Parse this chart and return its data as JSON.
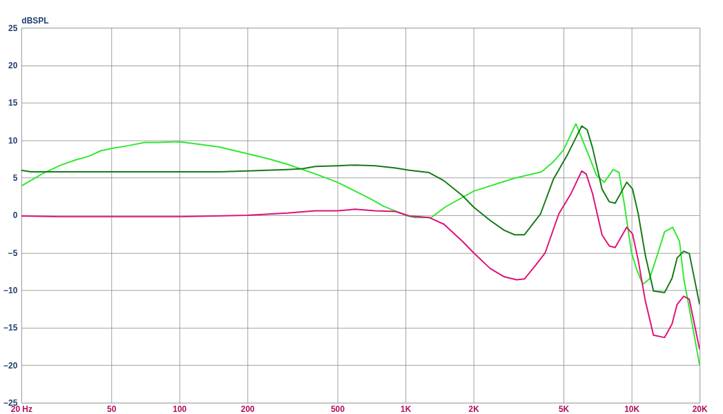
{
  "chart_data": {
    "type": "line",
    "ylabel": "dBSPL",
    "log": "x",
    "grid": true,
    "xlim": [
      20,
      20000
    ],
    "ylim": [
      -25,
      25
    ],
    "xticks": [
      {
        "value": 20,
        "label": "20  Hz"
      },
      50,
      100,
      200,
      500,
      {
        "value": 1000,
        "label": "1K"
      },
      {
        "value": 2000,
        "label": "2K"
      },
      {
        "value": 5000,
        "label": "5K"
      },
      {
        "value": 10000,
        "label": "10K"
      },
      {
        "value": 20000,
        "label": "20K"
      }
    ],
    "yticks": [
      -25,
      -20,
      -15,
      -10,
      -5,
      0,
      5,
      10,
      15,
      20,
      25
    ],
    "series": [
      {
        "color": "#30e830",
        "x": [
          20,
          25,
          30,
          35,
          40,
          45,
          50,
          60,
          70,
          80,
          100,
          120,
          150,
          200,
          250,
          300,
          400,
          500,
          600,
          700,
          800,
          1000,
          1100,
          1300,
          1500,
          2000,
          3000,
          4000,
          4500,
          5000,
          5675,
          6500,
          7000,
          7570,
          8300,
          8800,
          9300,
          10000,
          10500,
          11200,
          12000,
          13000,
          14000,
          15200,
          16300,
          17000,
          18000,
          20000
        ],
        "values": [
          3.9,
          5.6,
          6.7,
          7.4,
          7.9,
          8.6,
          8.9,
          9.3,
          9.7,
          9.7,
          9.8,
          9.5,
          9.1,
          8.2,
          7.5,
          6.8,
          5.5,
          4.4,
          3.2,
          2.2,
          1.2,
          0.0,
          -0.3,
          -0.3,
          1.1,
          3.2,
          4.9,
          5.8,
          7.1,
          8.7,
          12.2,
          7.8,
          5.3,
          4.4,
          6.1,
          5.7,
          1.4,
          -5.0,
          -7.1,
          -9.2,
          -8.5,
          -5.3,
          -2.2,
          -1.6,
          -3.5,
          -8.4,
          -12.4,
          -20.0
        ]
      },
      {
        "color": "#157a15",
        "x": [
          20,
          22,
          25,
          40,
          80,
          150,
          200,
          300,
          350,
          400,
          500,
          600,
          735,
          905,
          1040,
          1270,
          1480,
          1790,
          2000,
          2370,
          2730,
          3040,
          3360,
          3960,
          4510,
          5210,
          6020,
          6360,
          6720,
          7400,
          7970,
          8460,
          9520,
          10100,
          10700,
          11500,
          12500,
          14000,
          15100,
          15900,
          17000,
          18000,
          20000
        ],
        "values": [
          6.0,
          5.8,
          5.8,
          5.8,
          5.8,
          5.8,
          5.9,
          6.1,
          6.2,
          6.5,
          6.6,
          6.7,
          6.6,
          6.3,
          6.0,
          5.7,
          4.6,
          2.6,
          1.1,
          -0.7,
          -2.0,
          -2.6,
          -2.6,
          0.2,
          4.8,
          8.1,
          11.9,
          11.4,
          9.0,
          3.5,
          1.8,
          1.6,
          4.4,
          3.5,
          0.2,
          -5.3,
          -10.1,
          -10.3,
          -8.4,
          -5.7,
          -4.8,
          -5.1,
          -11.9
        ]
      },
      {
        "color": "#e0107a",
        "x": [
          20,
          30,
          50,
          100,
          200,
          300,
          400,
          500,
          600,
          735,
          905,
          1040,
          1270,
          1480,
          1790,
          2000,
          2370,
          2730,
          3100,
          3360,
          3780,
          4150,
          4770,
          5400,
          6020,
          6300,
          6720,
          7400,
          7970,
          8460,
          9520,
          10100,
          10700,
          11500,
          12500,
          14000,
          15100,
          15900,
          17000,
          18000,
          20000
        ],
        "values": [
          -0.1,
          -0.2,
          -0.2,
          -0.2,
          0.0,
          0.3,
          0.6,
          0.6,
          0.8,
          0.6,
          0.5,
          -0.1,
          -0.3,
          -1.2,
          -3.5,
          -5.0,
          -7.1,
          -8.2,
          -8.6,
          -8.5,
          -6.6,
          -5.0,
          0.2,
          2.9,
          5.9,
          5.5,
          2.9,
          -2.6,
          -4.1,
          -4.3,
          -1.6,
          -2.5,
          -6.0,
          -11.4,
          -16.0,
          -16.3,
          -14.5,
          -11.9,
          -10.8,
          -11.2,
          -17.9
        ]
      }
    ]
  }
}
